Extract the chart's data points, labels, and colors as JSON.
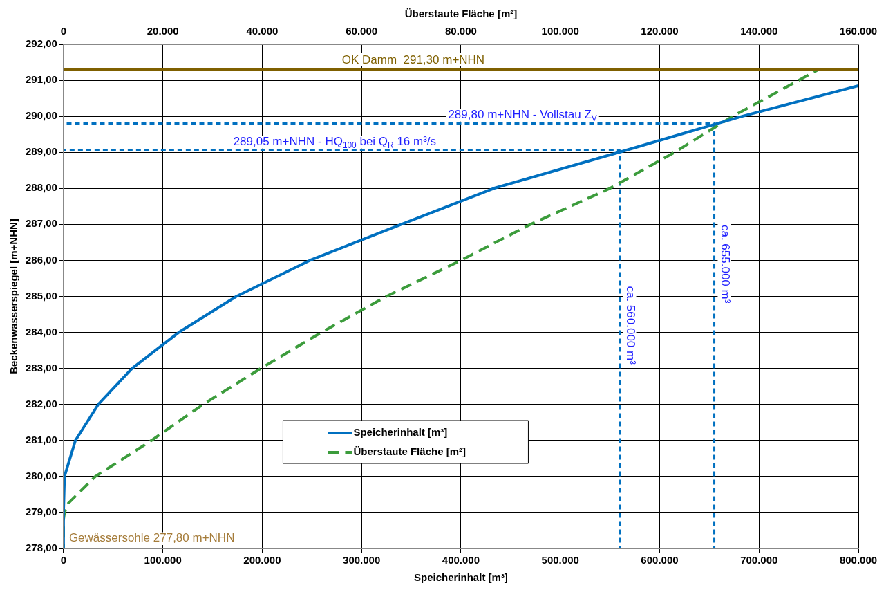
{
  "chart_data": {
    "type": "line",
    "xlabel": "Speicherinhalt [m³]",
    "x2label": "Überstaute Fläche [m²]",
    "ylabel": "Beckenwasserspiegel [m+NHN]",
    "xlim": [
      0,
      800000
    ],
    "xticks": [
      0,
      {
        "value": 100000,
        "label": "100.000"
      },
      {
        "value": 200000,
        "label": "200.000"
      },
      {
        "value": 300000,
        "label": "300.000"
      },
      {
        "value": 400000,
        "label": "400.000"
      },
      {
        "value": 500000,
        "label": "500.000"
      },
      {
        "value": 600000,
        "label": "600.000"
      },
      {
        "value": 700000,
        "label": "700.000"
      },
      {
        "value": 800000,
        "label": "800.000"
      }
    ],
    "x2lim": [
      0,
      160000
    ],
    "x2ticks": [
      0,
      {
        "value": 20000,
        "label": "20.000"
      },
      {
        "value": 40000,
        "label": "40.000"
      },
      {
        "value": 60000,
        "label": "60.000"
      },
      {
        "value": 80000,
        "label": "80.000"
      },
      {
        "value": 100000,
        "label": "100.000"
      },
      {
        "value": 120000,
        "label": "120.000"
      },
      {
        "value": 140000,
        "label": "140.000"
      },
      {
        "value": 160000,
        "label": "160.000"
      }
    ],
    "ylim": [
      278,
      292
    ],
    "yticks": [
      {
        "value": 278,
        "label": "278,00"
      },
      {
        "value": 279,
        "label": "279,00"
      },
      {
        "value": 280,
        "label": "280,00"
      },
      {
        "value": 281,
        "label": "281,00"
      },
      {
        "value": 282,
        "label": "282,00"
      },
      {
        "value": 283,
        "label": "283,00"
      },
      {
        "value": 284,
        "label": "284,00"
      },
      {
        "value": 285,
        "label": "285,00"
      },
      {
        "value": 286,
        "label": "286,00"
      },
      {
        "value": 287,
        "label": "287,00"
      },
      {
        "value": 288,
        "label": "288,00"
      },
      {
        "value": 289,
        "label": "289,00"
      },
      {
        "value": 290,
        "label": "290,00"
      },
      {
        "value": 291,
        "label": "291,00"
      },
      {
        "value": 292,
        "label": "292,00"
      }
    ],
    "grid": true,
    "legend": "bottom",
    "marker": "none",
    "series": [
      {
        "name": "Speicherinhalt [m³]",
        "type": "line",
        "color": "#0070c0",
        "line_style": "solid",
        "x": [
          0,
          0,
          1000,
          12000,
          35000,
          69000,
          116000,
          174000,
          248000,
          340000,
          433000,
          559000,
          683000,
          800000
        ],
        "values": [
          278,
          279,
          280,
          281,
          282,
          283,
          284,
          285,
          286,
          287,
          288,
          289,
          290,
          290.85
        ]
      },
      {
        "name": "Überstaute Fläche [m²]",
        "type": "line",
        "axis": "x2",
        "color": "#3c9c3c",
        "line_style": "dashed",
        "x": [
          0,
          0,
          200,
          1000,
          6400,
          17700,
          28100,
          39700,
          51900,
          65000,
          80000,
          94000,
          110000,
          123000,
          134700,
          152000
        ],
        "values": [
          278,
          278.8,
          279,
          279.26,
          280,
          281,
          282,
          283,
          284,
          285,
          286,
          287,
          288,
          289,
          290,
          291.3
        ]
      },
      {
        "type": "line",
        "color": "#0070c0",
        "line_style": "dashed",
        "x": [
          0,
          655000,
          655000
        ],
        "values": [
          289.8,
          289.8,
          278
        ]
      },
      {
        "type": "line",
        "color": "#0070c0",
        "line_style": "dashed",
        "x": [
          0,
          560000,
          560000
        ],
        "values": [
          289.05,
          289.05,
          278
        ]
      }
    ],
    "ref_lines": [
      {
        "axis": "y",
        "value": 291.3,
        "label": "OK Damm  291,30 m+NHN",
        "color": "#7f6000"
      }
    ],
    "annotations": [
      {
        "text": "289,80 m+NHN - Vollstau Z$_{V}$",
        "x": 462000,
        "y": 289.8
      },
      {
        "text": "289,05 m+NHN - HQ$_{100}$ bei Q$_{R}$ 16 m³/s",
        "x": 273000,
        "y": 289.05
      },
      {
        "text": "ca. 560.000 m³",
        "x": 560000,
        "y": 284.2
      },
      {
        "text": "ca. 655.000 m³",
        "x": 655000,
        "y": 285.9
      },
      "Gewässersohle 277,80 m+NHN"
    ]
  }
}
